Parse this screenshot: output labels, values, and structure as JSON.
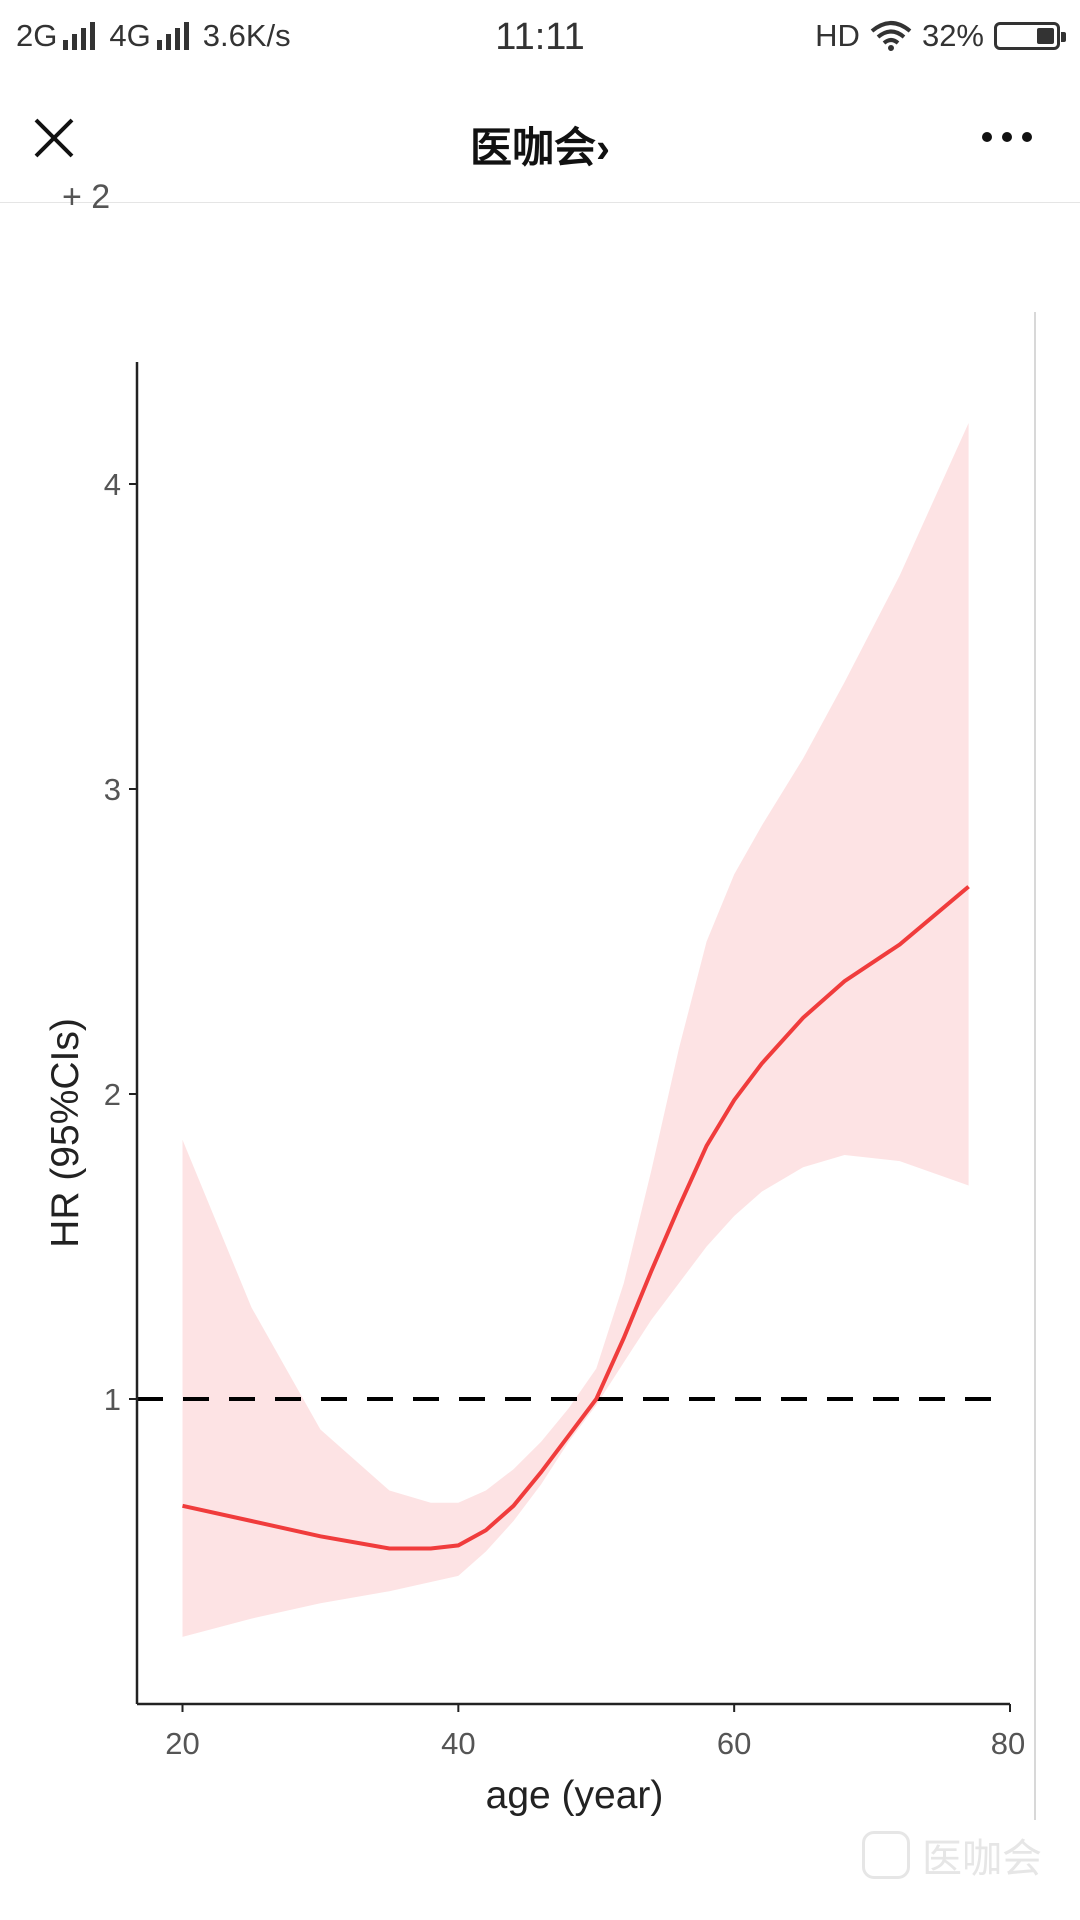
{
  "status_bar": {
    "net1": "2G",
    "net2": "4G",
    "speed": "3.6K/s",
    "time": "11:11",
    "hd": "HD",
    "battery": "32%",
    "battery_level": 0.32
  },
  "nav": {
    "title": "医咖会",
    "chevron": "›",
    "close_icon": "close-icon",
    "more_icon": "more-icon"
  },
  "cut_text": "+ 2",
  "watermark": {
    "text": "医咖会"
  },
  "chart_data": {
    "type": "line",
    "xlabel": "age (year)",
    "ylabel": "HR (95%CIs)",
    "xlim": [
      16.7,
      80
    ],
    "ylim": [
      0,
      4.4
    ],
    "xticks": [
      20,
      40,
      60,
      80
    ],
    "yticks": [
      1,
      2,
      3,
      4
    ],
    "reference_line": {
      "y": 1,
      "style": "dashed",
      "color": "#000000"
    },
    "line_color": "#f03c3c",
    "band_color": "#fde3e4",
    "grid": false,
    "series": [
      {
        "x": [
          20,
          25,
          30,
          35,
          38,
          40,
          42,
          44,
          46,
          48,
          50,
          52,
          54,
          56,
          58,
          60,
          62,
          65,
          68,
          72,
          77
        ],
        "y": [
          0.65,
          0.6,
          0.55,
          0.51,
          0.51,
          0.52,
          0.57,
          0.65,
          0.76,
          0.88,
          1.0,
          1.2,
          1.42,
          1.63,
          1.83,
          1.98,
          2.1,
          2.25,
          2.37,
          2.49,
          2.68
        ],
        "lower": [
          0.22,
          0.28,
          0.33,
          0.37,
          0.4,
          0.42,
          0.5,
          0.6,
          0.72,
          0.86,
          0.98,
          1.12,
          1.26,
          1.38,
          1.5,
          1.6,
          1.68,
          1.76,
          1.8,
          1.78,
          1.7
        ],
        "upper": [
          1.85,
          1.3,
          0.9,
          0.7,
          0.66,
          0.66,
          0.7,
          0.77,
          0.86,
          0.97,
          1.1,
          1.38,
          1.75,
          2.15,
          2.5,
          2.72,
          2.88,
          3.1,
          3.35,
          3.7,
          4.2
        ]
      }
    ]
  }
}
